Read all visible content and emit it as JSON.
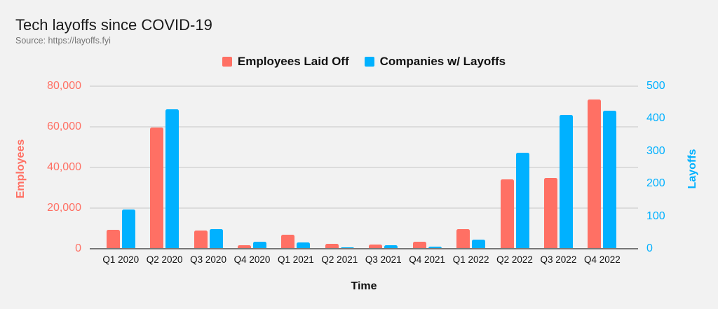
{
  "header": {
    "title": "Tech layoffs since COVID-19",
    "source": "Source: https://layoffs.fyi"
  },
  "legend": {
    "items": [
      {
        "label": "Employees Laid Off",
        "color": "#ff7064",
        "key": "employees"
      },
      {
        "label": "Companies w/ Layoffs",
        "color": "#00b1ff",
        "key": "companies"
      }
    ]
  },
  "chart_data": {
    "type": "bar",
    "title": "Tech layoffs since COVID-19",
    "xlabel": "Time",
    "ylabel_left": "Employees",
    "ylabel_right": "Layoffs",
    "ylim_left": [
      0,
      80000
    ],
    "ylim_right": [
      0,
      500
    ],
    "yticks_left": [
      0,
      20000,
      40000,
      60000,
      80000
    ],
    "yticks_left_labels": [
      "0",
      "20,000",
      "40,000",
      "60,000",
      "80,000"
    ],
    "yticks_right": [
      0,
      100,
      200,
      300,
      400,
      500
    ],
    "yticks_right_labels": [
      "0",
      "100",
      "200",
      "300",
      "400",
      "500"
    ],
    "grid": true,
    "legend_position": "top-center",
    "categories": [
      "Q1 2020",
      "Q2 2020",
      "Q3 2020",
      "Q4 2020",
      "Q1 2021",
      "Q2 2021",
      "Q3 2021",
      "Q4 2021",
      "Q1 2022",
      "Q2 2022",
      "Q3 2022",
      "Q4 2022"
    ],
    "series": [
      {
        "name": "Employees Laid Off",
        "axis": "left",
        "color": "#ff7064",
        "values": [
          9200,
          59800,
          9100,
          1600,
          6800,
          2500,
          2000,
          3400,
          9600,
          34200,
          34800,
          73400
        ]
      },
      {
        "name": "Companies w/ Layoffs",
        "axis": "right",
        "color": "#00b1ff",
        "values": [
          120,
          428,
          60,
          21,
          20,
          5,
          10,
          7,
          29,
          296,
          411,
          424
        ]
      }
    ]
  },
  "colors": {
    "background": "#f2f2f2",
    "gridline": "#dcdcdc",
    "axis_line": "#777777",
    "left_axis_text": "#ff7064",
    "right_axis_text": "#00b1ff",
    "title_text": "#1a1a1a",
    "source_text": "#757575",
    "tick_text": "#111111"
  }
}
